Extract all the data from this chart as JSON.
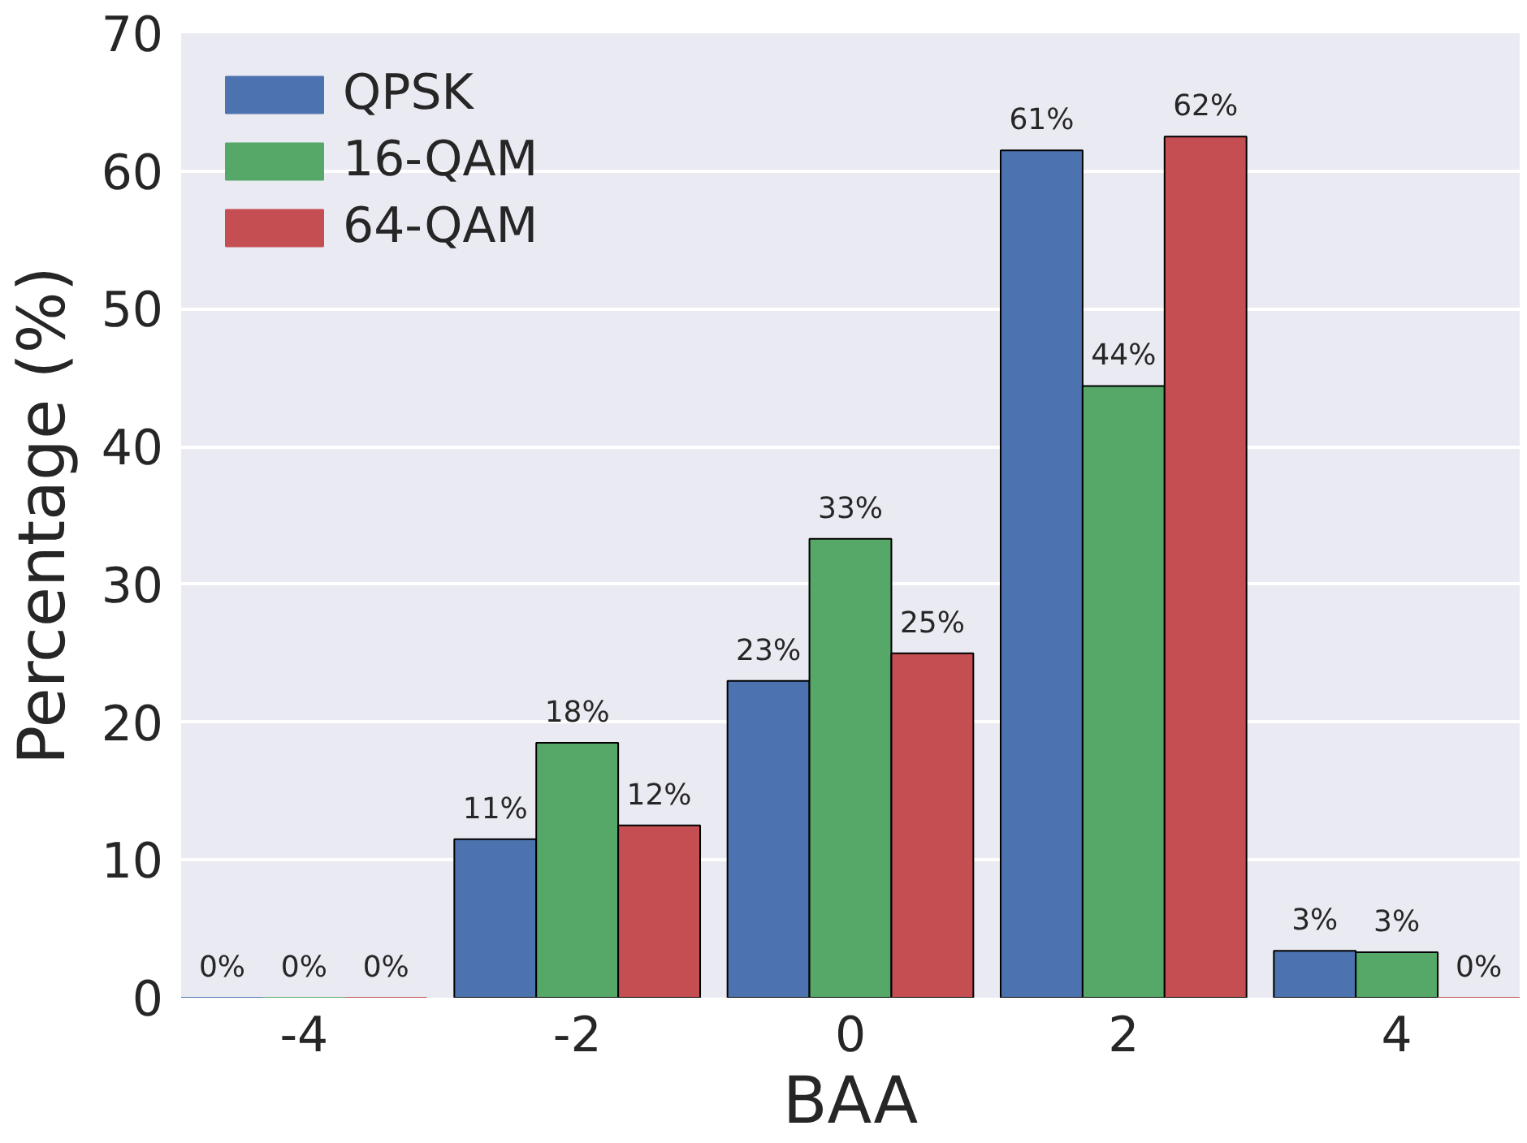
{
  "chart_data": {
    "type": "bar",
    "xlabel": "BAA",
    "ylabel": "Percentage (%)",
    "categories": [
      "-4",
      "-2",
      "0",
      "2",
      "4"
    ],
    "series": [
      {
        "name": "QPSK",
        "color": "#4c72b0",
        "values": [
          0,
          11.5,
          23,
          61.5,
          3.4
        ],
        "value_labels": [
          "0%",
          "11%",
          "23%",
          "61%",
          "3%"
        ]
      },
      {
        "name": "16-QAM",
        "color": "#55a868",
        "values": [
          0,
          18.5,
          33.3,
          44.4,
          3.3
        ],
        "value_labels": [
          "0%",
          "18%",
          "33%",
          "44%",
          "3%"
        ]
      },
      {
        "name": "64-QAM",
        "color": "#c44e52",
        "values": [
          0,
          12.5,
          25,
          62.5,
          0
        ],
        "value_labels": [
          "0%",
          "12%",
          "25%",
          "62%",
          "0%"
        ]
      }
    ],
    "ylim": [
      0,
      70
    ],
    "yticks": [
      0,
      10,
      20,
      30,
      40,
      50,
      60,
      70
    ],
    "grid": "y",
    "legend": "top left"
  }
}
